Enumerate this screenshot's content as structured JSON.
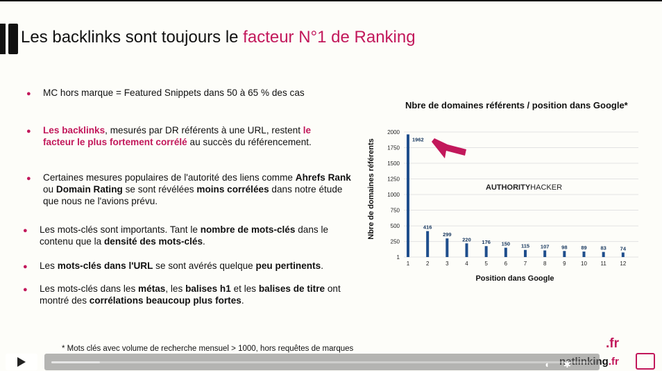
{
  "slide": {
    "title_part1": "Les backlinks sont toujours le ",
    "title_highlight": "facteur N°1 de Ranking",
    "bullets": [
      {
        "text": "MC hors marque = Featured Snippets dans 50 à 65 % des cas"
      },
      {
        "hl1": "Les backlinks",
        "t1": ", mesurés par DR référents à une URL, restent ",
        "hl2": "le facteur le plus fortement corrélé",
        "t2": " au succès du référencement."
      },
      {
        "t1": "Certaines mesures populaires de l'autorité des liens comme ",
        "b1": "Ahrefs Rank",
        "t2": " ou ",
        "b2": "Domain Rating",
        "t3": " se sont révélées ",
        "b3": "moins corrélées",
        "t4": " dans notre étude que nous ne l'avions prévu."
      },
      {
        "t1": "Les mots-clés sont importants. Tant le ",
        "b1": "nombre de mots-clés",
        "t2": " dans le contenu que la ",
        "b2": "densité des mots-clés",
        "t3": "."
      },
      {
        "t1": "Les ",
        "b1": "mots-clés dans l'URL",
        "t2": " se sont avérés quelque ",
        "b2": "peu pertinents",
        "t3": "."
      },
      {
        "t1": "Les mots-clés dans les ",
        "b1": "métas",
        "t2": ", les ",
        "b2": "balises h1",
        "t3": " et les ",
        "b3": "balises de titre",
        "t4": " ont montré des ",
        "b4": "corrélations beaucoup plus fortes",
        "t5": "."
      }
    ],
    "footnote": "* Mots clés avec volume de recherche mensuel > 1000, hors requêtes de marques",
    "brand": "netlinking",
    "brand_tld": ".fr",
    "brand_logo_tld": ".fr",
    "colors": {
      "accent": "#c2185b",
      "bar": "#1f4e8c"
    }
  },
  "chart_data": {
    "type": "bar",
    "title": "Nbre de domaines référents / position dans Google*",
    "xlabel": "Position dans Google",
    "ylabel": "Nbre de domaines référents",
    "categories": [
      "1",
      "2",
      "3",
      "4",
      "5",
      "6",
      "7",
      "8",
      "9",
      "10",
      "11",
      "12"
    ],
    "values": [
      1962,
      416,
      299,
      220,
      176,
      150,
      115,
      107,
      98,
      89,
      83,
      74
    ],
    "yticks": [
      "1",
      "250",
      "500",
      "750",
      "1000",
      "1250",
      "1500",
      "1750",
      "2000"
    ],
    "ylim": [
      1,
      2000
    ],
    "grid": true,
    "watermark_bold": "AUTHORITY",
    "watermark_light": "HACKER",
    "annotation": "arrow-pointing-to-first-bar"
  },
  "controls": {
    "play_icon": "play-icon",
    "progress_fraction": 0.09,
    "fullscreen_icon": "fullscreen-icon",
    "settings_icon": "gear-icon",
    "volume_icon": "volume-icon"
  }
}
